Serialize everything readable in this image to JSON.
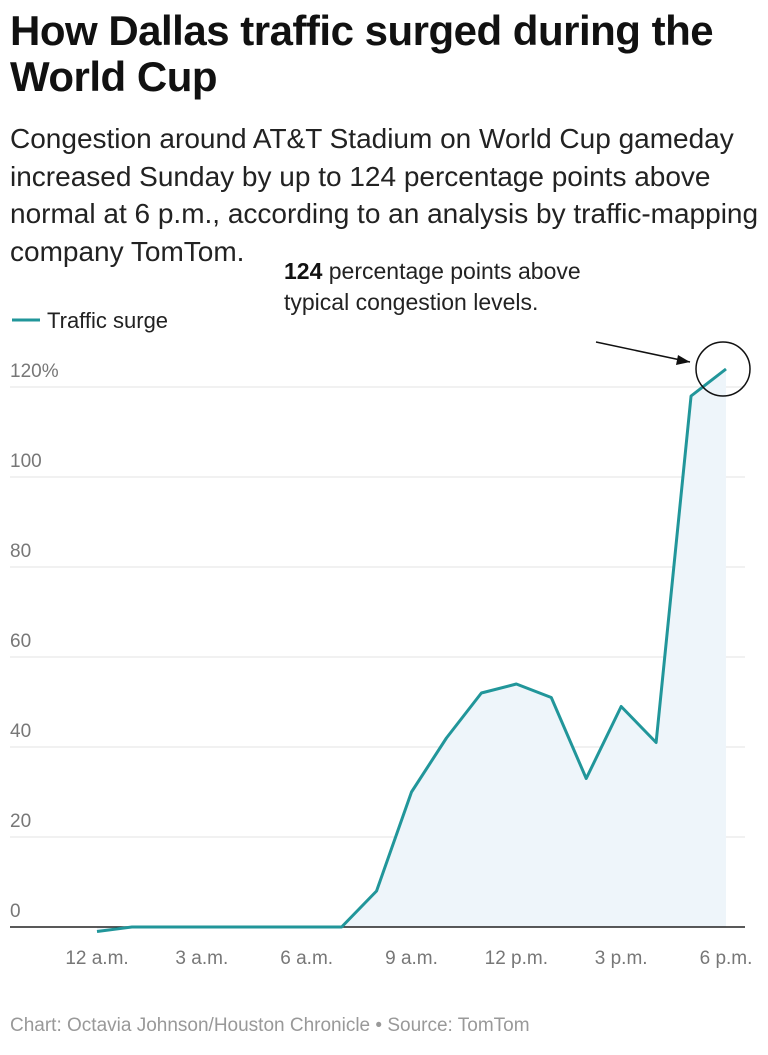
{
  "chart_data": {
    "type": "line",
    "title": "How Dallas traffic surged during the World Cup",
    "subtitle": "Congestion around AT&T Stadium on World Cup gameday increased Sunday by up to 124 percentage points above normal at 6 p.m., according to an analysis by traffic-mapping company TomTom.",
    "footer": "Chart: Octavia Johnson/Houston Chronicle • Source: TomTom",
    "x": [
      0,
      1,
      2,
      3,
      4,
      5,
      6,
      7,
      8,
      9,
      10,
      11,
      12,
      13,
      14,
      15,
      16,
      17,
      18
    ],
    "series": [
      {
        "name": "Traffic surge",
        "color": "#21969a",
        "values": [
          -1,
          0,
          0,
          0,
          0,
          0,
          0,
          0,
          8,
          30,
          42,
          52,
          54,
          51,
          33,
          49,
          41,
          118,
          124
        ]
      }
    ],
    "xlim": [
      0,
      18
    ],
    "xticks": [
      {
        "value": 0,
        "label": "12 a.m."
      },
      {
        "value": 3,
        "label": "3 a.m."
      },
      {
        "value": 6,
        "label": "6 a.m."
      },
      {
        "value": 9,
        "label": "9 a.m."
      },
      {
        "value": 12,
        "label": "12 p.m."
      },
      {
        "value": 15,
        "label": "3 p.m."
      },
      {
        "value": 18,
        "label": "6 p.m."
      }
    ],
    "ylim": [
      0,
      130
    ],
    "yticks": [
      0,
      20,
      40,
      60,
      80,
      100,
      {
        "value": 120,
        "label": "120%"
      }
    ],
    "grid": true,
    "area_color": "#eef5fa",
    "annotation": {
      "value": 124,
      "text": "percentage points above typical congestion levels."
    }
  }
}
